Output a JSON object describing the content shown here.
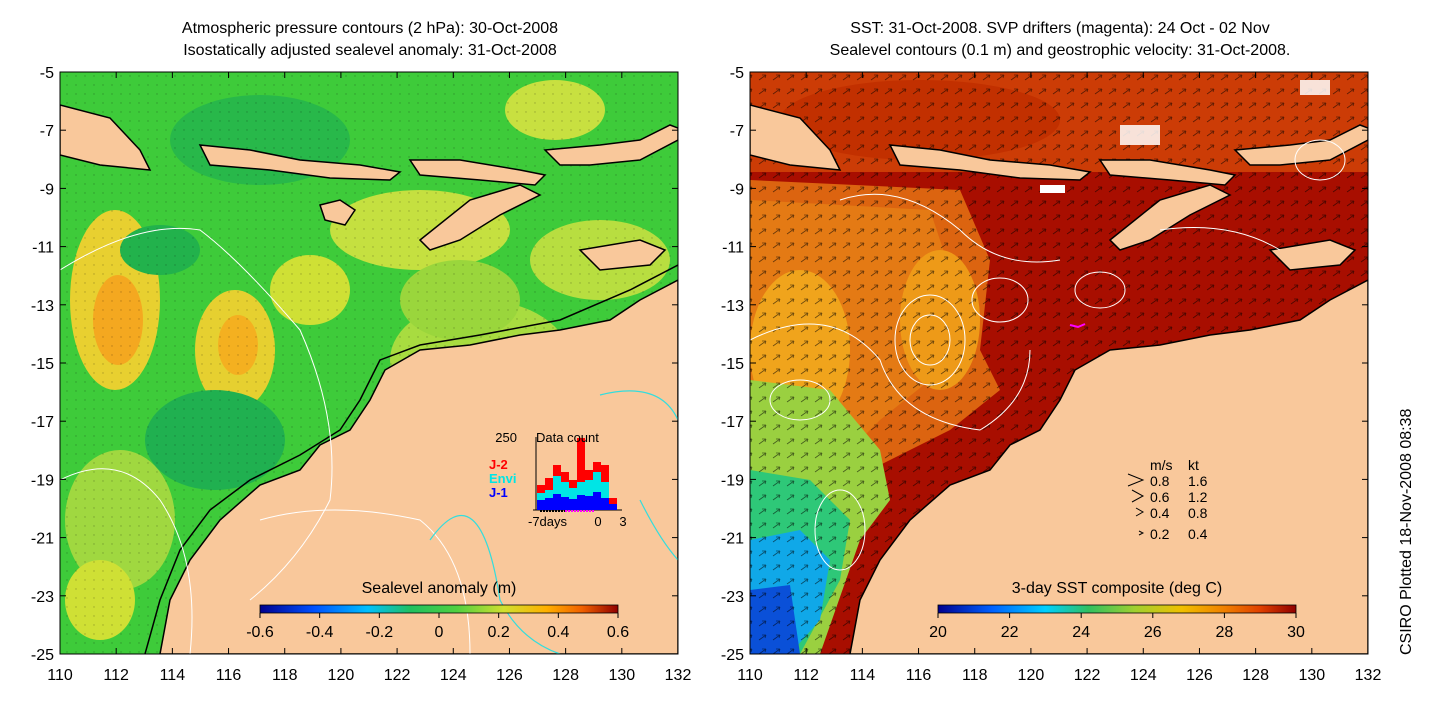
{
  "left_panel": {
    "title_line1": "Atmospheric pressure contours (2 hPa): 30-Oct-2008",
    "title_line2": "Isostatically adjusted sealevel anomaly: 31-Oct-2008",
    "x_ticks": [
      "110",
      "112",
      "114",
      "116",
      "118",
      "120",
      "122",
      "124",
      "126",
      "128",
      "130",
      "132"
    ],
    "y_ticks": [
      "-5",
      "-7",
      "-9",
      "-11",
      "-13",
      "-15",
      "-17",
      "-19",
      "-21",
      "-23",
      "-25"
    ],
    "colorbar_label": "Sealevel anomaly (m)",
    "colorbar_ticks": [
      "-0.6",
      "-0.4",
      "-0.2",
      "0",
      "0.2",
      "0.4",
      "0.6"
    ],
    "inset": {
      "max_label": "250",
      "title": "Data count",
      "legend": [
        {
          "label": "J-2",
          "color": "#ff0000"
        },
        {
          "label": "Envi",
          "color": "#00e5e5"
        },
        {
          "label": "J-1",
          "color": "#0000ff"
        }
      ],
      "x_labels": [
        "-7days",
        "0",
        "3"
      ]
    }
  },
  "right_panel": {
    "title_line1": "SST: 31-Oct-2008. SVP drifters (magenta): 24 Oct - 02 Nov",
    "title_line2": "Sealevel contours (0.1 m) and geostrophic velocity: 31-Oct-2008.",
    "x_ticks": [
      "110",
      "112",
      "114",
      "116",
      "118",
      "120",
      "122",
      "124",
      "126",
      "128",
      "130",
      "132"
    ],
    "y_ticks": [
      "-5",
      "-7",
      "-9",
      "-11",
      "-13",
      "-15",
      "-17",
      "-19",
      "-21",
      "-23",
      "-25"
    ],
    "colorbar_label": "3-day SST composite (deg C)",
    "colorbar_ticks": [
      "20",
      "22",
      "24",
      "26",
      "28",
      "30"
    ],
    "speed_legend": {
      "header_ms": "m/s",
      "header_kt": "kt",
      "rows": [
        {
          "ms": "0.8",
          "kt": "1.6"
        },
        {
          "ms": "0.6",
          "kt": "1.2"
        },
        {
          "ms": "0.4",
          "kt": "0.8"
        },
        {
          "ms": "0.2",
          "kt": "0.4"
        }
      ]
    }
  },
  "credit": "CSIRO Plotted 18-Nov-2008 08:38",
  "colors": {
    "land": "#f9c89b",
    "coast": "#000000",
    "drifter": "#ff00ff"
  }
}
